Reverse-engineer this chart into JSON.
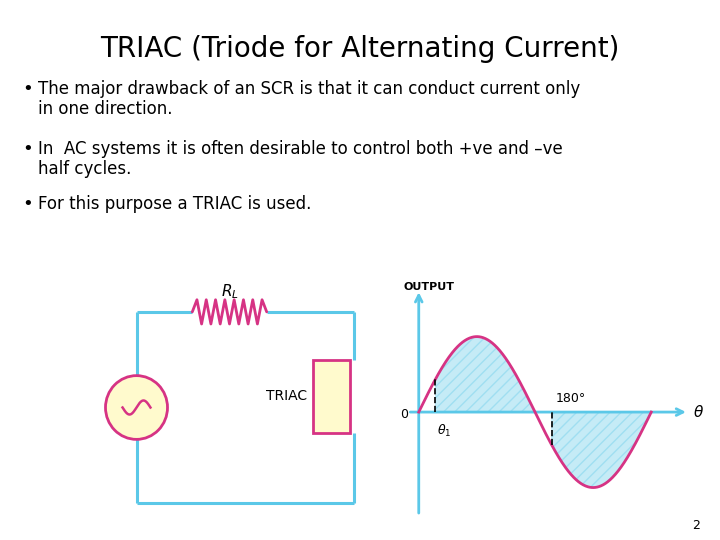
{
  "title": "TRIAC (Triode for Alternating Current)",
  "bullets": [
    "The major drawback of an SCR is that it can conduct current only\nin one direction.",
    "In  AC systems it is often desirable to control both +ve and –ve\nhalf cycles.",
    "For this purpose a TRIAC is used."
  ],
  "circuit_color": "#5bc8e8",
  "resistor_color": "#d63384",
  "triac_box_fill": "#fffacd",
  "triac_box_edge": "#d63384",
  "source_fill": "#fffacd",
  "source_edge": "#d63384",
  "wave_color": "#d63384",
  "axis_color": "#5bc8e8",
  "hatch_color": "#5bc8e8",
  "page_number": "2",
  "background_color": "#ffffff"
}
